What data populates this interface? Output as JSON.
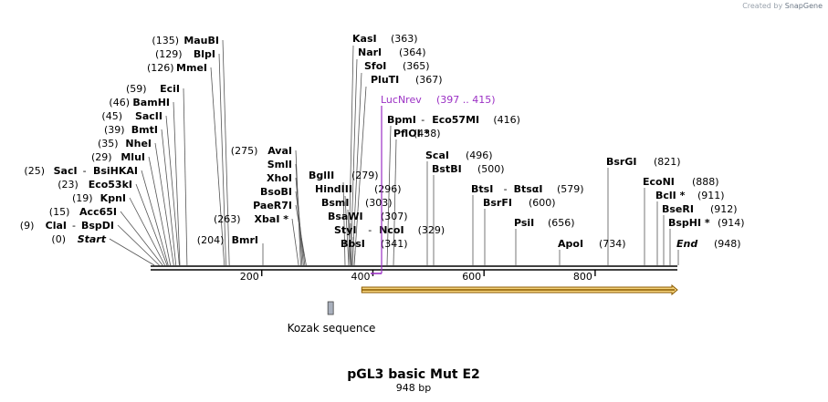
{
  "credit": {
    "prefix": "Created by",
    "brand": "SnapGene"
  },
  "title": "pGL3 basic Mut E2",
  "length_label": "948 bp",
  "total_bp": 948,
  "ticks": [
    {
      "bp": 200,
      "label": "200"
    },
    {
      "bp": 400,
      "label": "400"
    },
    {
      "bp": 600,
      "label": "600"
    },
    {
      "bp": 800,
      "label": "800"
    }
  ],
  "colors": {
    "line": "#000000",
    "leader": "#555555",
    "primer": "#9b30c4",
    "arrow_fill": "#f5d27a",
    "arrow_edge": "#8a5a00",
    "feature_box": "#a9b0bd"
  },
  "left_labels": [
    {
      "pos": "(135)",
      "name": "MauBI",
      "bp": 135
    },
    {
      "pos": "(129)",
      "name": "BlpI",
      "bp": 129
    },
    {
      "pos": "(126)",
      "name": "MmeI",
      "bp": 126
    },
    {
      "pos": "(59)",
      "name": "EciI",
      "bp": 59
    },
    {
      "pos": "(46)",
      "name": "BamHI",
      "bp": 46
    },
    {
      "pos": "(45)",
      "name": "SacII",
      "bp": 45
    },
    {
      "pos": "(39)",
      "name": "BmtI",
      "bp": 39
    },
    {
      "pos": "(35)",
      "name": "NheI",
      "bp": 35
    },
    {
      "pos": "(29)",
      "name": "MluI",
      "bp": 29
    },
    {
      "pos": "(25)",
      "name": "SacI",
      "name2": "BsiHKAI",
      "bp": 25
    },
    {
      "pos": "(23)",
      "name": "Eco53kI",
      "bp": 23
    },
    {
      "pos": "(19)",
      "name": "KpnI",
      "bp": 19
    },
    {
      "pos": "(15)",
      "name": "Acc65I",
      "bp": 15
    },
    {
      "pos": "(9)",
      "name": "ClaI",
      "name2": "BspDI",
      "bp": 9
    },
    {
      "pos": "(0)",
      "name": "Start",
      "bp": 0,
      "italic": true
    }
  ],
  "mid_labels": [
    {
      "pos": "(275)",
      "name": "AvaI",
      "bp": 275
    },
    {
      "name": "SmlI",
      "bp": 275
    },
    {
      "name": "XhoI",
      "bp": 275
    },
    {
      "name": "BsoBI",
      "bp": 275
    },
    {
      "name": "PaeR7I",
      "bp": 275
    },
    {
      "pos": "(263)",
      "name": "XbaI *",
      "bp": 263
    },
    {
      "pos": "(204)",
      "name": "BmrI",
      "bp": 204
    }
  ],
  "center_labels": [
    {
      "name": "KasI",
      "pos": "(363)",
      "bp": 363
    },
    {
      "name": "NarI",
      "pos": "(364)",
      "bp": 364
    },
    {
      "name": "SfoI",
      "pos": "(365)",
      "bp": 365
    },
    {
      "name": "PluTI",
      "pos": "(367)",
      "bp": 367
    },
    {
      "name": "BglII",
      "pos": "(279)",
      "bp": 279
    },
    {
      "name": "HindIII",
      "pos": "(296)",
      "bp": 296
    },
    {
      "name": "BsmI",
      "pos": "(303)",
      "bp": 303
    },
    {
      "name": "BsaWI",
      "pos": "(307)",
      "bp": 307
    },
    {
      "name": "StyI",
      "name2": "NcoI",
      "pos": "(329)",
      "bp": 329
    },
    {
      "name": "BbsI",
      "pos": "(341)",
      "bp": 341
    },
    {
      "name": "BpmI",
      "name2": "Eco57MI",
      "pos": "(416)",
      "bp": 416
    },
    {
      "name": "PflOI *",
      "pos": "(438)",
      "bp": 438
    }
  ],
  "primer": {
    "name": "LucNrev",
    "range": "(397 .. 415)",
    "start": 397,
    "end": 415
  },
  "right_labels": [
    {
      "name": "ScaI",
      "pos": "(496)",
      "bp": 496
    },
    {
      "name": "BstBI",
      "pos": "(500)",
      "bp": 500
    },
    {
      "name": "BtsI",
      "name2": "BtsαI",
      "pos": "(579)",
      "bp": 579
    },
    {
      "name": "BsrFI",
      "pos": "(600)",
      "bp": 600
    },
    {
      "name": "PsiI",
      "pos": "(656)",
      "bp": 656
    },
    {
      "name": "ApoI",
      "pos": "(734)",
      "bp": 734
    },
    {
      "name": "BsrGI",
      "pos": "(821)",
      "bp": 821
    },
    {
      "name": "EcoNI",
      "pos": "(888)",
      "bp": 888
    },
    {
      "name": "BclI *",
      "pos": "(911)",
      "bp": 911
    },
    {
      "name": "BseRI",
      "pos": "(912)",
      "bp": 912
    },
    {
      "name": "BspHI *",
      "pos": "(914)",
      "bp": 914
    },
    {
      "name": "End",
      "pos": "(948)",
      "bp": 948,
      "italic": true
    }
  ],
  "features": [
    {
      "name": "Kozak sequence",
      "start": 319,
      "end": 328
    },
    {
      "name": "",
      "start": 380,
      "end": 948,
      "type": "arrow"
    }
  ]
}
